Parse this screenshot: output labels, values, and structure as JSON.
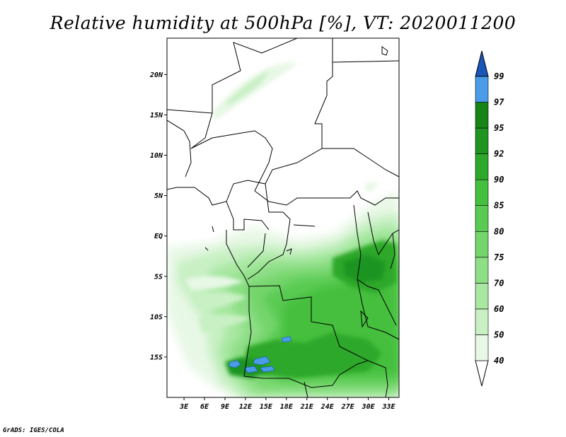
{
  "title": "Relative humidity at 500hPa [%], VT: 2020011200",
  "credit": "GrADS: IGES/COLA",
  "map": {
    "lon_range": [
      0.5,
      34.5
    ],
    "lat_range": [
      -20,
      24.5
    ],
    "lat_ticks": [
      {
        "value": 20,
        "label": "20N"
      },
      {
        "value": 15,
        "label": "15N"
      },
      {
        "value": 10,
        "label": "10N"
      },
      {
        "value": 5,
        "label": "5N"
      },
      {
        "value": 0,
        "label": "EQ"
      },
      {
        "value": -5,
        "label": "5S"
      },
      {
        "value": -10,
        "label": "10S"
      },
      {
        "value": -15,
        "label": "15S"
      }
    ],
    "lon_ticks": [
      {
        "value": 3,
        "label": "3E"
      },
      {
        "value": 6,
        "label": "6E"
      },
      {
        "value": 9,
        "label": "9E"
      },
      {
        "value": 12,
        "label": "12E"
      },
      {
        "value": 15,
        "label": "15E"
      },
      {
        "value": 18,
        "label": "18E"
      },
      {
        "value": 21,
        "label": "21E"
      },
      {
        "value": 24,
        "label": "24E"
      },
      {
        "value": 27,
        "label": "27E"
      },
      {
        "value": 30,
        "label": "30E"
      },
      {
        "value": 33,
        "label": "33E"
      }
    ]
  },
  "colorbar": {
    "levels": [
      {
        "label": "40",
        "color": "#e8f8e6"
      },
      {
        "label": "50",
        "color": "#c8f0c4"
      },
      {
        "label": "60",
        "color": "#a8e8a2"
      },
      {
        "label": "70",
        "color": "#8ede86"
      },
      {
        "label": "75",
        "color": "#74d56c"
      },
      {
        "label": "80",
        "color": "#5acb52"
      },
      {
        "label": "85",
        "color": "#44bf3e"
      },
      {
        "label": "90",
        "color": "#2ea82a"
      },
      {
        "label": "92",
        "color": "#1f9420"
      },
      {
        "label": "95",
        "color": "#168416"
      },
      {
        "label": "97",
        "color": "#4a9ce8"
      },
      {
        "label": "99",
        "color": "#2a74d8"
      }
    ],
    "top_color": "#1a56b8"
  }
}
